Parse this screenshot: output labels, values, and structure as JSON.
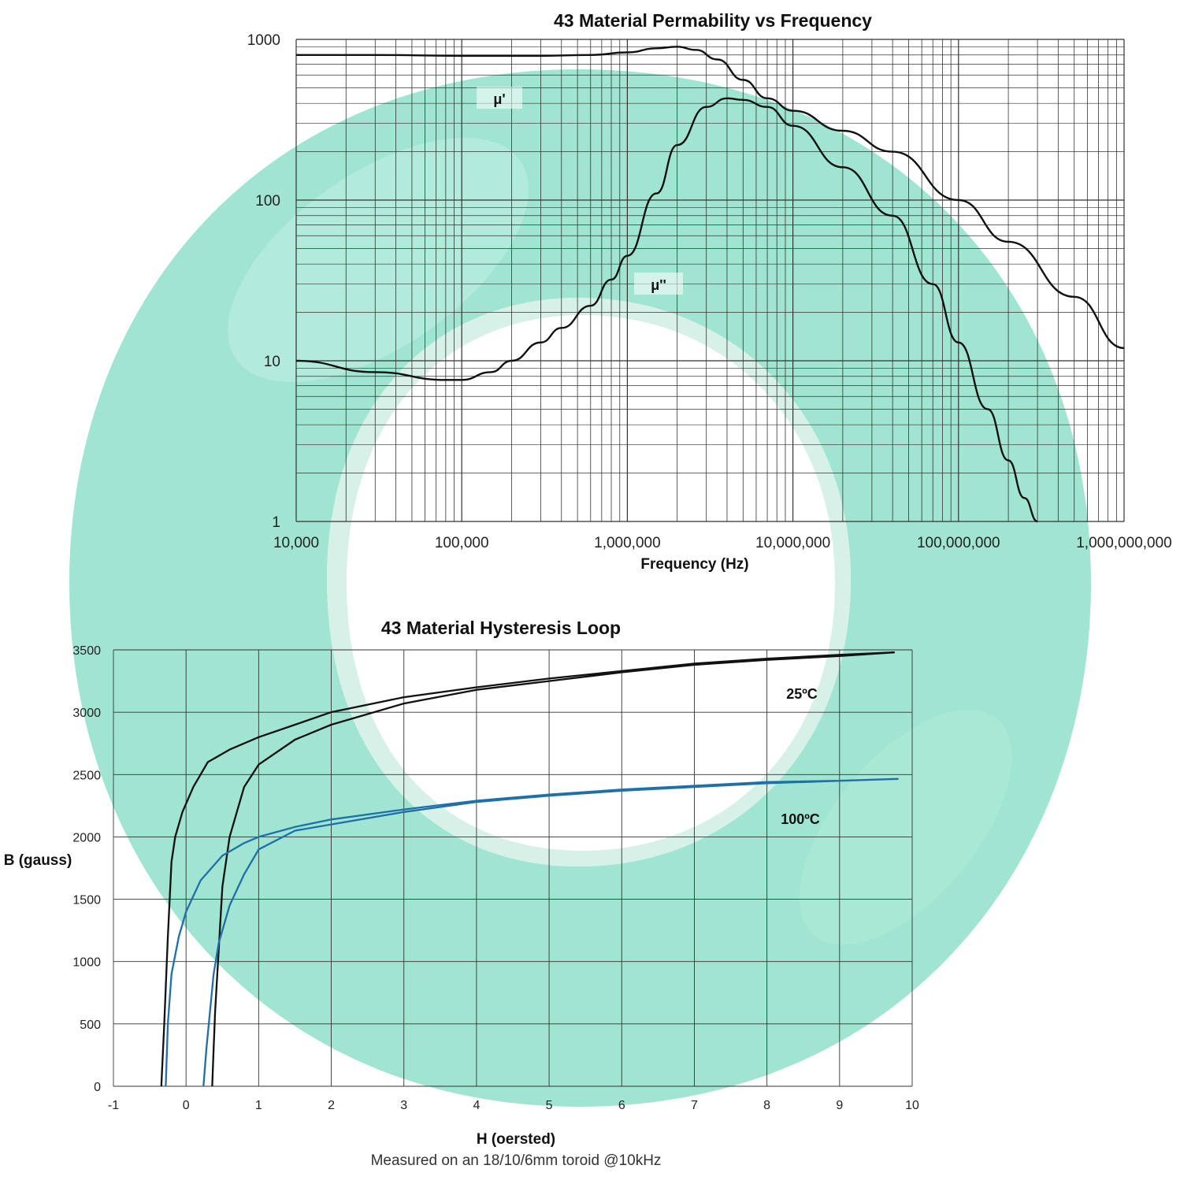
{
  "chart_data": [
    {
      "type": "line",
      "title": "43 Material Permability vs Frequency",
      "xlabel": "Frequency (Hz)",
      "ylabel": "",
      "x_scale": "log",
      "y_scale": "log",
      "xlim": [
        10000,
        1000000000
      ],
      "ylim": [
        1,
        1000
      ],
      "x_ticks": [
        "10,000",
        "100,000",
        "1,000,000",
        "10,000,000",
        "100,000,000",
        "1,000,000,000"
      ],
      "y_ticks": [
        "1",
        "10",
        "100",
        "1000"
      ],
      "grid": true,
      "colors": {
        "line": "#111111",
        "grid": "#333333"
      },
      "series": [
        {
          "name": "μ'",
          "x": [
            10000,
            30000,
            100000,
            300000,
            600000,
            1000000,
            1500000,
            2000000,
            2600000,
            3500000,
            5000000,
            7000000,
            10000000,
            20000000,
            40000000,
            100000000,
            200000000,
            500000000,
            1000000000
          ],
          "y": [
            800,
            800,
            790,
            790,
            800,
            830,
            880,
            900,
            860,
            750,
            560,
            430,
            360,
            270,
            200,
            100,
            55,
            25,
            12
          ]
        },
        {
          "name": "μ''",
          "x": [
            10000,
            30000,
            80000,
            100000,
            150000,
            200000,
            300000,
            400000,
            600000,
            800000,
            1000000,
            1500000,
            2000000,
            3000000,
            4000000,
            5000000,
            7000000,
            10000000,
            20000000,
            40000000,
            70000000,
            100000000,
            150000000,
            200000000,
            250000000,
            300000000
          ],
          "y": [
            10,
            8.5,
            7.6,
            7.6,
            8.5,
            10,
            13,
            16,
            22,
            32,
            45,
            110,
            220,
            380,
            430,
            420,
            380,
            290,
            160,
            80,
            30,
            13,
            5,
            2.4,
            1.4,
            1
          ]
        }
      ]
    },
    {
      "type": "line",
      "title": "43 Material Hysteresis Loop",
      "xlabel": "H (oersted)",
      "ylabel": "B (gauss)",
      "xlim": [
        -1,
        10
      ],
      "ylim": [
        0,
        3500
      ],
      "x_ticks": [
        "-1",
        "0",
        "1",
        "2",
        "3",
        "4",
        "5",
        "6",
        "7",
        "8",
        "9",
        "10"
      ],
      "y_ticks": [
        "0",
        "500",
        "1000",
        "1500",
        "2000",
        "2500",
        "3000",
        "3500"
      ],
      "grid": true,
      "series": [
        {
          "name": "25ºC",
          "color": "#111111",
          "x": [
            -0.34,
            -0.3,
            -0.25,
            -0.2,
            -0.15,
            -0.05,
            0.1,
            0.3,
            0.6,
            1.0,
            1.5,
            2.0,
            3.0,
            4.0,
            5.0,
            6.0,
            7.0,
            8.0,
            9.0,
            9.75,
            9.0,
            8.0,
            7.0,
            6.0,
            5.0,
            4.0,
            3.0,
            2.0,
            1.5,
            1.0,
            0.8,
            0.6,
            0.5,
            0.45,
            0.4,
            0.38,
            0.36
          ],
          "y": [
            0,
            500,
            1200,
            1800,
            2000,
            2200,
            2400,
            2600,
            2700,
            2800,
            2900,
            3000,
            3120,
            3200,
            3270,
            3330,
            3390,
            3430,
            3460,
            3480,
            3450,
            3420,
            3380,
            3320,
            3250,
            3180,
            3070,
            2900,
            2780,
            2580,
            2400,
            2000,
            1600,
            1100,
            600,
            300,
            0
          ]
        },
        {
          "name": "100ºC",
          "color": "#1f6fa8",
          "x": [
            -0.28,
            -0.25,
            -0.2,
            -0.1,
            0.0,
            0.2,
            0.5,
            0.8,
            1.0,
            1.5,
            2.0,
            3.0,
            4.0,
            5.0,
            6.0,
            7.0,
            8.0,
            9.0,
            9.8,
            9.0,
            8.0,
            7.0,
            6.0,
            5.0,
            4.0,
            3.0,
            2.0,
            1.5,
            1.0,
            0.8,
            0.6,
            0.45,
            0.38,
            0.33,
            0.28,
            0.24
          ],
          "y": [
            0,
            500,
            900,
            1200,
            1400,
            1650,
            1850,
            1950,
            2000,
            2080,
            2140,
            2220,
            2290,
            2340,
            2380,
            2410,
            2440,
            2450,
            2465,
            2450,
            2430,
            2400,
            2370,
            2330,
            2280,
            2200,
            2100,
            2050,
            1900,
            1700,
            1450,
            1150,
            900,
            600,
            300,
            0
          ]
        }
      ]
    }
  ],
  "top_chart": {
    "title": "43 Material Permability vs Frequency",
    "xlabel": "Frequency (Hz)",
    "label_mu_prime": "μ'",
    "label_mu_double_prime": "μ''"
  },
  "bottom_chart": {
    "title": "43 Material Hysteresis Loop",
    "xlabel": "H (oersted)",
    "ylabel": "B (gauss)",
    "label_25": "25ºC",
    "label_100": "100ºC",
    "note": "Measured on an 18/10/6mm toroid @10kHz"
  },
  "colors": {
    "toroid": "#6fd9bf",
    "toroid_highlight": "#bff2e6",
    "curve_black": "#111111",
    "curve_blue": "#1f6fa8",
    "grid": "#333333"
  }
}
